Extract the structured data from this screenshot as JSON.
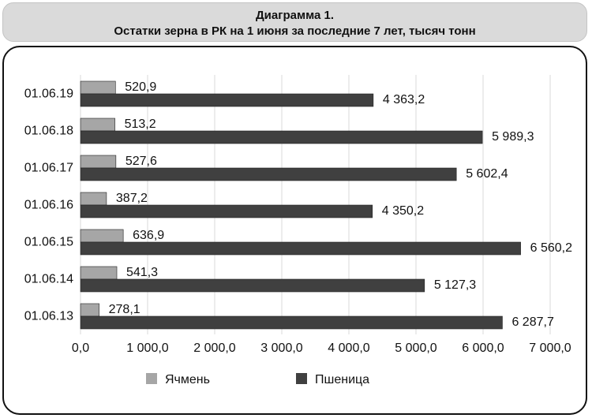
{
  "header": {
    "title": "Диаграмма 1.",
    "subtitle": "Остатки зерна в РК на 1 июня за последние 7 лет, тысяч тонн"
  },
  "colors": {
    "barley": "#a6a6a6",
    "wheat": "#404040",
    "grid": "#d9d9d9"
  },
  "chart_data": {
    "type": "bar",
    "orientation": "horizontal",
    "title": "Остатки зерна в РК на 1 июня за последние 7 лет, тысяч тонн",
    "categories": [
      "01.06.19",
      "01.06.18",
      "01.06.17",
      "01.06.16",
      "01.06.15",
      "01.06.14",
      "01.06.13"
    ],
    "series": [
      {
        "name": "Ячмень",
        "values": [
          520.9,
          513.2,
          527.6,
          387.2,
          636.9,
          541.3,
          278.1
        ],
        "labels": [
          "520,9",
          "513,2",
          "527,6",
          "387,2",
          "636,9",
          "541,3",
          "278,1"
        ]
      },
      {
        "name": "Пшеница",
        "values": [
          4363.2,
          5989.3,
          5602.4,
          4350.2,
          6560.2,
          5127.3,
          6287.7
        ],
        "labels": [
          "4 363,2",
          "5 989,3",
          "5 602,4",
          "4 350,2",
          "6 560,2",
          "5 127,3",
          "6 287,7"
        ]
      }
    ],
    "xlim": [
      0,
      7000
    ],
    "xticks": [
      0,
      1000,
      2000,
      3000,
      4000,
      5000,
      6000,
      7000
    ],
    "xtick_labels": [
      "0,0",
      "1 000,0",
      "2 000,0",
      "3 000,0",
      "4 000,0",
      "5 000,0",
      "6 000,0",
      "7 000,0"
    ],
    "grid": true,
    "legend": "bottom"
  }
}
